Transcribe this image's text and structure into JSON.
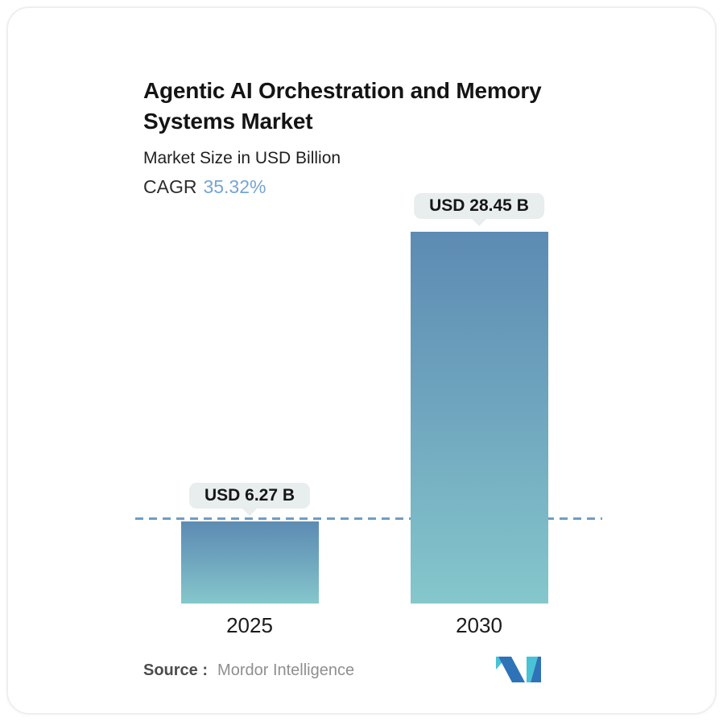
{
  "header": {
    "title_line1": "Agentic AI Orchestration and Memory",
    "title_line2": "Systems Market",
    "subtitle": "Market Size in USD Billion",
    "cagr_label": "CAGR",
    "cagr_value": "35.32%"
  },
  "chart_data": {
    "type": "bar",
    "title": "Agentic AI Orchestration and Memory Systems Market",
    "subtitle": "Market Size in USD Billion",
    "cagr": "35.32%",
    "categories": [
      "2025",
      "2030"
    ],
    "values": [
      6.27,
      28.45
    ],
    "value_labels": [
      "USD 6.27 B",
      "USD 28.45 B"
    ],
    "xlabel": "",
    "ylabel": "Market Size in USD Billion",
    "ylim": [
      0,
      28.45
    ],
    "grid": false,
    "legend": "none",
    "reference_line": {
      "value": 6.27,
      "style": "dashed",
      "color": "#6F9DC4"
    }
  },
  "footer": {
    "source_label": "Source :",
    "source_value": "Mordor Intelligence",
    "logo": "mordor-intelligence-logo"
  },
  "colors": {
    "accent_blue": "#74A5D6",
    "bar_gradient_top": "#5D8BB3",
    "bar_gradient_bottom": "#85C7CC",
    "pill_background": "#E8EDEE",
    "dashed_line": "#6F9DC4",
    "logo_teal": "#47C3D5",
    "logo_blue": "#2E72B8",
    "card_border": "#EFEFEF"
  }
}
